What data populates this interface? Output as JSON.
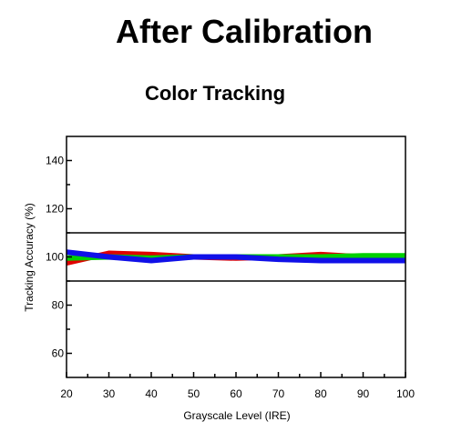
{
  "page": {
    "title": "After Calibration"
  },
  "chart_data": {
    "type": "line",
    "title": "Color Tracking",
    "xlabel": "Grayscale Level (IRE)",
    "ylabel": "Tracking Accuracy (%)",
    "x": [
      20,
      30,
      40,
      50,
      60,
      70,
      80,
      90,
      100
    ],
    "xlim": [
      20,
      100
    ],
    "ylim": [
      50,
      150
    ],
    "x_ticks": [
      20,
      30,
      40,
      50,
      60,
      70,
      80,
      90,
      100
    ],
    "y_ticks": [
      60,
      80,
      100,
      120,
      140
    ],
    "reference_lines": [
      90,
      110
    ],
    "grid": false,
    "legend": "none",
    "series": [
      {
        "color": "#e00000",
        "values": [
          97.5,
          101.5,
          101.0,
          100.0,
          99.5,
          100.0,
          101.0,
          100.0,
          99.5
        ]
      },
      {
        "color": "#00d000",
        "values": [
          99.5,
          100.0,
          99.5,
          100.0,
          100.0,
          100.0,
          100.0,
          100.5,
          100.5
        ]
      },
      {
        "color": "#1010e8",
        "values": [
          102.0,
          100.0,
          98.5,
          100.0,
          100.0,
          99.0,
          98.5,
          98.5,
          98.5
        ]
      }
    ]
  }
}
